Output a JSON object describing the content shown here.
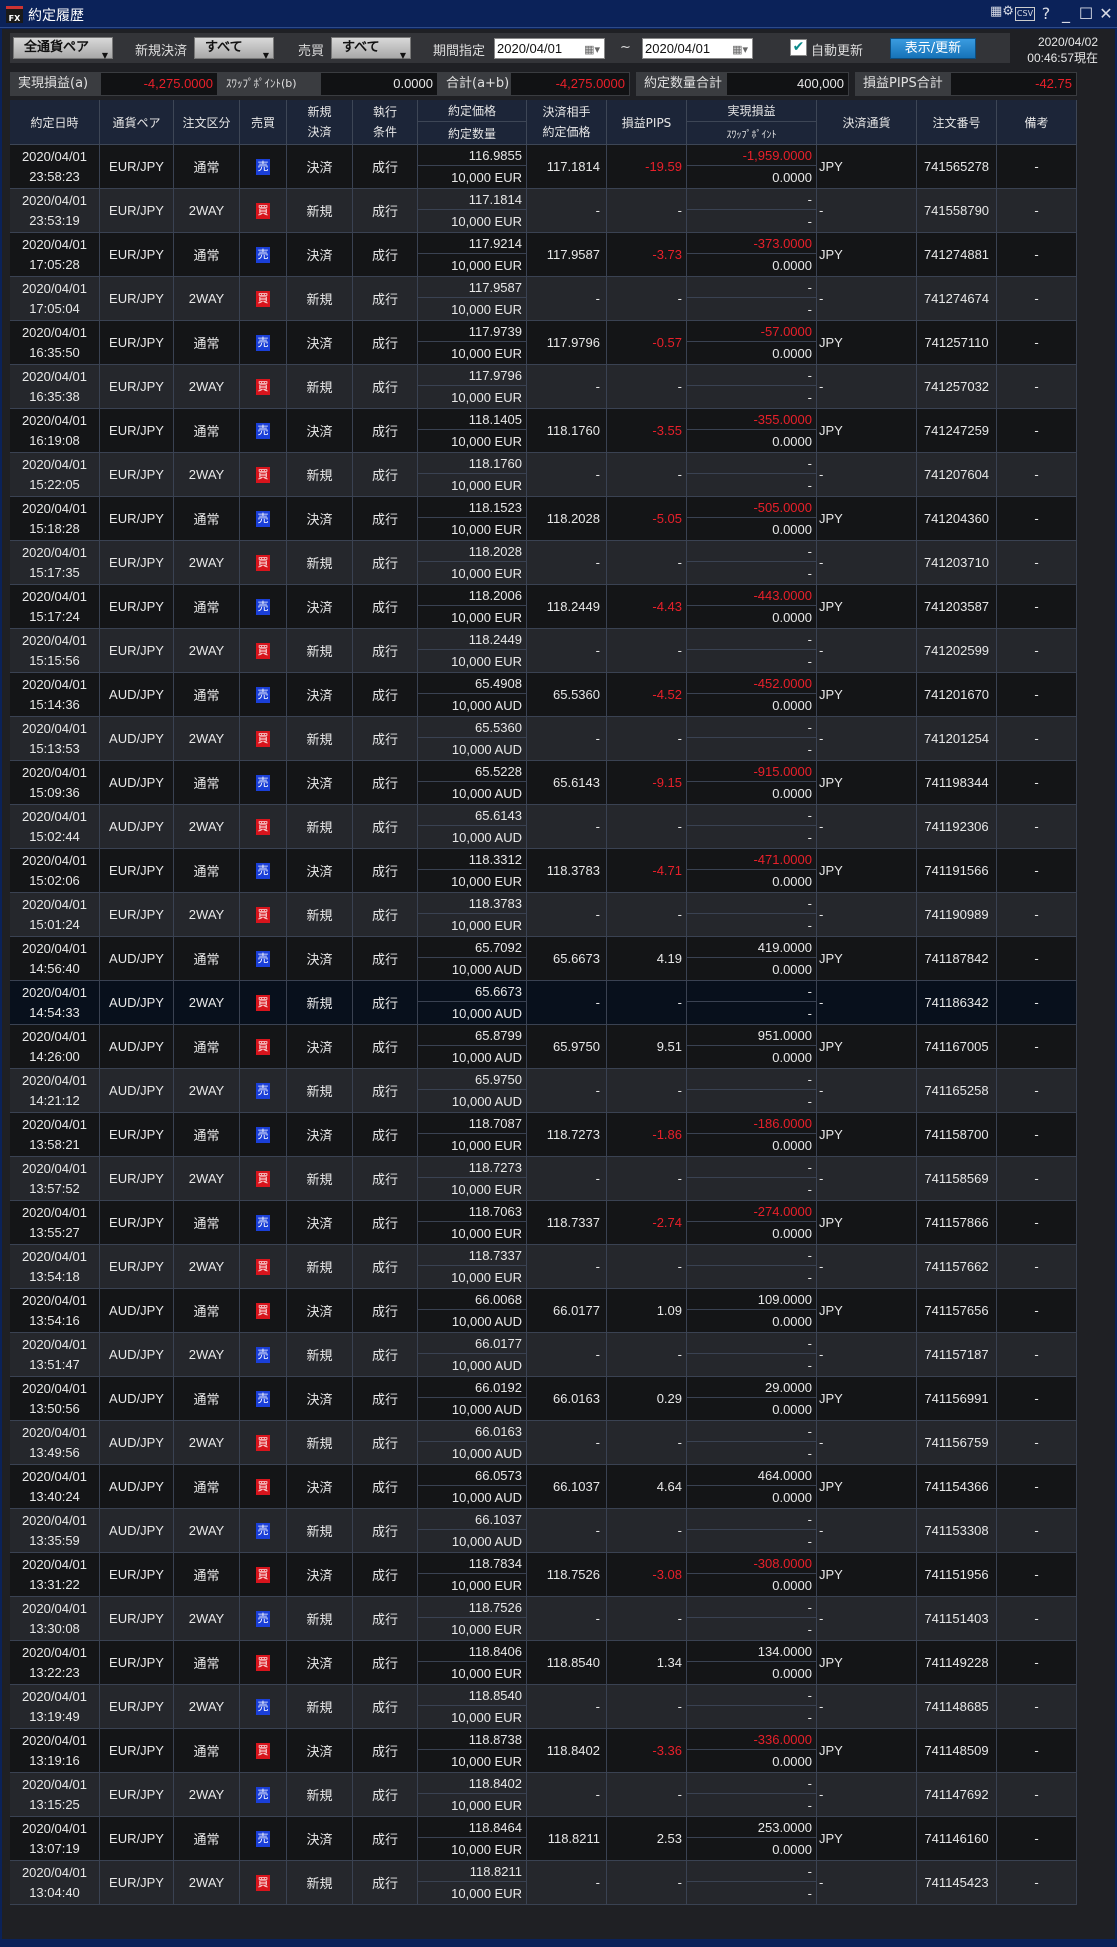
{
  "window": {
    "title": "約定履歴",
    "logo": "FX",
    "icons": [
      "grid-settings-icon",
      "csv-icon",
      "help-icon",
      "minimize-icon",
      "maximize-icon",
      "close-icon"
    ],
    "csv": "CSV",
    "help": "?",
    "min": "_",
    "max": "☐",
    "close": "✕"
  },
  "toolbar": {
    "pair_select": "全通貨ペア",
    "new_close_label": "新規決済",
    "new_close_select": "すべて",
    "side_label": "売買",
    "side_select": "すべて",
    "period_label": "期間指定",
    "date_from": "2020/04/01",
    "tilde": "~",
    "date_to": "2020/04/01",
    "auto_update_label": "自動更新",
    "auto_update_checked": true,
    "refresh_button": "表示/更新",
    "now_date": "2020/04/02",
    "now_time": "00:46:57現在"
  },
  "summary": {
    "pnl_label": "実現損益(a)",
    "pnl_value": "-4,275.0000",
    "swap_label": "ｽﾜｯﾌﾟﾎﾟｲﾝﾄ(b)",
    "swap_value": "0.0000",
    "total_label": "合計(a+b)",
    "total_value": "-4,275.0000",
    "qty_label": "約定数量合計",
    "qty_value": "400,000",
    "pips_label": "損益PIPS合計",
    "pips_value": "-42.75"
  },
  "colors": {
    "sell": "#1a3fd8",
    "buy": "#d8141c",
    "negative": "#e8202a",
    "refresh": "#1f82c8"
  },
  "columns": {
    "datetime": "約定日時",
    "pair": "通貨ペア",
    "order_type": "注文区分",
    "side": "売買",
    "nc1": "新規",
    "nc2": "決済",
    "exec1": "執行",
    "exec2": "条件",
    "price": "約定価格",
    "qty": "約定数量",
    "cp1": "決済相手",
    "cp2": "約定価格",
    "pips": "損益PIPS",
    "pnl": "実現損益",
    "swap": "ｽﾜｯﾌﾟﾎﾟｲﾝﾄ",
    "currency": "決済通貨",
    "order_no": "注文番号",
    "note": "備考"
  },
  "rows": [
    {
      "d": "2020/04/01",
      "t": "23:58:23",
      "pair": "EUR/JPY",
      "type": "通常",
      "side": "売",
      "nc": "決済",
      "ex": "成行",
      "price": "116.9855",
      "qty": "10,000 EUR",
      "cp": "117.1814",
      "pips": "-19.59",
      "pnl": "-1,959.0000",
      "swap": "0.0000",
      "cur": "JPY",
      "no": "741565278",
      "note": "-"
    },
    {
      "d": "2020/04/01",
      "t": "23:53:19",
      "pair": "EUR/JPY",
      "type": "2WAY",
      "side": "買",
      "nc": "新規",
      "ex": "成行",
      "price": "117.1814",
      "qty": "10,000 EUR",
      "cp": "-",
      "pips": "-",
      "pnl": "-",
      "swap": "-",
      "cur": "-",
      "no": "741558790",
      "note": "-"
    },
    {
      "d": "2020/04/01",
      "t": "17:05:28",
      "pair": "EUR/JPY",
      "type": "通常",
      "side": "売",
      "nc": "決済",
      "ex": "成行",
      "price": "117.9214",
      "qty": "10,000 EUR",
      "cp": "117.9587",
      "pips": "-3.73",
      "pnl": "-373.0000",
      "swap": "0.0000",
      "cur": "JPY",
      "no": "741274881",
      "note": "-"
    },
    {
      "d": "2020/04/01",
      "t": "17:05:04",
      "pair": "EUR/JPY",
      "type": "2WAY",
      "side": "買",
      "nc": "新規",
      "ex": "成行",
      "price": "117.9587",
      "qty": "10,000 EUR",
      "cp": "-",
      "pips": "-",
      "pnl": "-",
      "swap": "-",
      "cur": "-",
      "no": "741274674",
      "note": "-"
    },
    {
      "d": "2020/04/01",
      "t": "16:35:50",
      "pair": "EUR/JPY",
      "type": "通常",
      "side": "売",
      "nc": "決済",
      "ex": "成行",
      "price": "117.9739",
      "qty": "10,000 EUR",
      "cp": "117.9796",
      "pips": "-0.57",
      "pnl": "-57.0000",
      "swap": "0.0000",
      "cur": "JPY",
      "no": "741257110",
      "note": "-"
    },
    {
      "d": "2020/04/01",
      "t": "16:35:38",
      "pair": "EUR/JPY",
      "type": "2WAY",
      "side": "買",
      "nc": "新規",
      "ex": "成行",
      "price": "117.9796",
      "qty": "10,000 EUR",
      "cp": "-",
      "pips": "-",
      "pnl": "-",
      "swap": "-",
      "cur": "-",
      "no": "741257032",
      "note": "-"
    },
    {
      "d": "2020/04/01",
      "t": "16:19:08",
      "pair": "EUR/JPY",
      "type": "通常",
      "side": "売",
      "nc": "決済",
      "ex": "成行",
      "price": "118.1405",
      "qty": "10,000 EUR",
      "cp": "118.1760",
      "pips": "-3.55",
      "pnl": "-355.0000",
      "swap": "0.0000",
      "cur": "JPY",
      "no": "741247259",
      "note": "-"
    },
    {
      "d": "2020/04/01",
      "t": "15:22:05",
      "pair": "EUR/JPY",
      "type": "2WAY",
      "side": "買",
      "nc": "新規",
      "ex": "成行",
      "price": "118.1760",
      "qty": "10,000 EUR",
      "cp": "-",
      "pips": "-",
      "pnl": "-",
      "swap": "-",
      "cur": "-",
      "no": "741207604",
      "note": "-"
    },
    {
      "d": "2020/04/01",
      "t": "15:18:28",
      "pair": "EUR/JPY",
      "type": "通常",
      "side": "売",
      "nc": "決済",
      "ex": "成行",
      "price": "118.1523",
      "qty": "10,000 EUR",
      "cp": "118.2028",
      "pips": "-5.05",
      "pnl": "-505.0000",
      "swap": "0.0000",
      "cur": "JPY",
      "no": "741204360",
      "note": "-"
    },
    {
      "d": "2020/04/01",
      "t": "15:17:35",
      "pair": "EUR/JPY",
      "type": "2WAY",
      "side": "買",
      "nc": "新規",
      "ex": "成行",
      "price": "118.2028",
      "qty": "10,000 EUR",
      "cp": "-",
      "pips": "-",
      "pnl": "-",
      "swap": "-",
      "cur": "-",
      "no": "741203710",
      "note": "-"
    },
    {
      "d": "2020/04/01",
      "t": "15:17:24",
      "pair": "EUR/JPY",
      "type": "通常",
      "side": "売",
      "nc": "決済",
      "ex": "成行",
      "price": "118.2006",
      "qty": "10,000 EUR",
      "cp": "118.2449",
      "pips": "-4.43",
      "pnl": "-443.0000",
      "swap": "0.0000",
      "cur": "JPY",
      "no": "741203587",
      "note": "-"
    },
    {
      "d": "2020/04/01",
      "t": "15:15:56",
      "pair": "EUR/JPY",
      "type": "2WAY",
      "side": "買",
      "nc": "新規",
      "ex": "成行",
      "price": "118.2449",
      "qty": "10,000 EUR",
      "cp": "-",
      "pips": "-",
      "pnl": "-",
      "swap": "-",
      "cur": "-",
      "no": "741202599",
      "note": "-"
    },
    {
      "d": "2020/04/01",
      "t": "15:14:36",
      "pair": "AUD/JPY",
      "type": "通常",
      "side": "売",
      "nc": "決済",
      "ex": "成行",
      "price": "65.4908",
      "qty": "10,000 AUD",
      "cp": "65.5360",
      "pips": "-4.52",
      "pnl": "-452.0000",
      "swap": "0.0000",
      "cur": "JPY",
      "no": "741201670",
      "note": "-"
    },
    {
      "d": "2020/04/01",
      "t": "15:13:53",
      "pair": "AUD/JPY",
      "type": "2WAY",
      "side": "買",
      "nc": "新規",
      "ex": "成行",
      "price": "65.5360",
      "qty": "10,000 AUD",
      "cp": "-",
      "pips": "-",
      "pnl": "-",
      "swap": "-",
      "cur": "-",
      "no": "741201254",
      "note": "-"
    },
    {
      "d": "2020/04/01",
      "t": "15:09:36",
      "pair": "AUD/JPY",
      "type": "通常",
      "side": "売",
      "nc": "決済",
      "ex": "成行",
      "price": "65.5228",
      "qty": "10,000 AUD",
      "cp": "65.6143",
      "pips": "-9.15",
      "pnl": "-915.0000",
      "swap": "0.0000",
      "cur": "JPY",
      "no": "741198344",
      "note": "-"
    },
    {
      "d": "2020/04/01",
      "t": "15:02:44",
      "pair": "AUD/JPY",
      "type": "2WAY",
      "side": "買",
      "nc": "新規",
      "ex": "成行",
      "price": "65.6143",
      "qty": "10,000 AUD",
      "cp": "-",
      "pips": "-",
      "pnl": "-",
      "swap": "-",
      "cur": "-",
      "no": "741192306",
      "note": "-"
    },
    {
      "d": "2020/04/01",
      "t": "15:02:06",
      "pair": "EUR/JPY",
      "type": "通常",
      "side": "売",
      "nc": "決済",
      "ex": "成行",
      "price": "118.3312",
      "qty": "10,000 EUR",
      "cp": "118.3783",
      "pips": "-4.71",
      "pnl": "-471.0000",
      "swap": "0.0000",
      "cur": "JPY",
      "no": "741191566",
      "note": "-"
    },
    {
      "d": "2020/04/01",
      "t": "15:01:24",
      "pair": "EUR/JPY",
      "type": "2WAY",
      "side": "買",
      "nc": "新規",
      "ex": "成行",
      "price": "118.3783",
      "qty": "10,000 EUR",
      "cp": "-",
      "pips": "-",
      "pnl": "-",
      "swap": "-",
      "cur": "-",
      "no": "741190989",
      "note": "-"
    },
    {
      "d": "2020/04/01",
      "t": "14:56:40",
      "pair": "AUD/JPY",
      "type": "通常",
      "side": "売",
      "nc": "決済",
      "ex": "成行",
      "price": "65.7092",
      "qty": "10,000 AUD",
      "cp": "65.6673",
      "pips": "4.19",
      "pnl": "419.0000",
      "swap": "0.0000",
      "cur": "JPY",
      "no": "741187842",
      "note": "-"
    },
    {
      "d": "2020/04/01",
      "t": "14:54:33",
      "pair": "AUD/JPY",
      "type": "2WAY",
      "side": "買",
      "nc": "新規",
      "ex": "成行",
      "price": "65.6673",
      "qty": "10,000 AUD",
      "cp": "-",
      "pips": "-",
      "pnl": "-",
      "swap": "-",
      "cur": "-",
      "no": "741186342",
      "note": "-",
      "selected": true
    },
    {
      "d": "2020/04/01",
      "t": "14:26:00",
      "pair": "AUD/JPY",
      "type": "通常",
      "side": "買",
      "nc": "決済",
      "ex": "成行",
      "price": "65.8799",
      "qty": "10,000 AUD",
      "cp": "65.9750",
      "pips": "9.51",
      "pnl": "951.0000",
      "swap": "0.0000",
      "cur": "JPY",
      "no": "741167005",
      "note": "-"
    },
    {
      "d": "2020/04/01",
      "t": "14:21:12",
      "pair": "AUD/JPY",
      "type": "2WAY",
      "side": "売",
      "nc": "新規",
      "ex": "成行",
      "price": "65.9750",
      "qty": "10,000 AUD",
      "cp": "-",
      "pips": "-",
      "pnl": "-",
      "swap": "-",
      "cur": "-",
      "no": "741165258",
      "note": "-"
    },
    {
      "d": "2020/04/01",
      "t": "13:58:21",
      "pair": "EUR/JPY",
      "type": "通常",
      "side": "売",
      "nc": "決済",
      "ex": "成行",
      "price": "118.7087",
      "qty": "10,000 EUR",
      "cp": "118.7273",
      "pips": "-1.86",
      "pnl": "-186.0000",
      "swap": "0.0000",
      "cur": "JPY",
      "no": "741158700",
      "note": "-"
    },
    {
      "d": "2020/04/01",
      "t": "13:57:52",
      "pair": "EUR/JPY",
      "type": "2WAY",
      "side": "買",
      "nc": "新規",
      "ex": "成行",
      "price": "118.7273",
      "qty": "10,000 EUR",
      "cp": "-",
      "pips": "-",
      "pnl": "-",
      "swap": "-",
      "cur": "-",
      "no": "741158569",
      "note": "-"
    },
    {
      "d": "2020/04/01",
      "t": "13:55:27",
      "pair": "EUR/JPY",
      "type": "通常",
      "side": "売",
      "nc": "決済",
      "ex": "成行",
      "price": "118.7063",
      "qty": "10,000 EUR",
      "cp": "118.7337",
      "pips": "-2.74",
      "pnl": "-274.0000",
      "swap": "0.0000",
      "cur": "JPY",
      "no": "741157866",
      "note": "-"
    },
    {
      "d": "2020/04/01",
      "t": "13:54:18",
      "pair": "EUR/JPY",
      "type": "2WAY",
      "side": "買",
      "nc": "新規",
      "ex": "成行",
      "price": "118.7337",
      "qty": "10,000 EUR",
      "cp": "-",
      "pips": "-",
      "pnl": "-",
      "swap": "-",
      "cur": "-",
      "no": "741157662",
      "note": "-"
    },
    {
      "d": "2020/04/01",
      "t": "13:54:16",
      "pair": "AUD/JPY",
      "type": "通常",
      "side": "買",
      "nc": "決済",
      "ex": "成行",
      "price": "66.0068",
      "qty": "10,000 AUD",
      "cp": "66.0177",
      "pips": "1.09",
      "pnl": "109.0000",
      "swap": "0.0000",
      "cur": "JPY",
      "no": "741157656",
      "note": "-"
    },
    {
      "d": "2020/04/01",
      "t": "13:51:47",
      "pair": "AUD/JPY",
      "type": "2WAY",
      "side": "売",
      "nc": "新規",
      "ex": "成行",
      "price": "66.0177",
      "qty": "10,000 AUD",
      "cp": "-",
      "pips": "-",
      "pnl": "-",
      "swap": "-",
      "cur": "-",
      "no": "741157187",
      "note": "-"
    },
    {
      "d": "2020/04/01",
      "t": "13:50:56",
      "pair": "AUD/JPY",
      "type": "通常",
      "side": "売",
      "nc": "決済",
      "ex": "成行",
      "price": "66.0192",
      "qty": "10,000 AUD",
      "cp": "66.0163",
      "pips": "0.29",
      "pnl": "29.0000",
      "swap": "0.0000",
      "cur": "JPY",
      "no": "741156991",
      "note": "-"
    },
    {
      "d": "2020/04/01",
      "t": "13:49:56",
      "pair": "AUD/JPY",
      "type": "2WAY",
      "side": "買",
      "nc": "新規",
      "ex": "成行",
      "price": "66.0163",
      "qty": "10,000 AUD",
      "cp": "-",
      "pips": "-",
      "pnl": "-",
      "swap": "-",
      "cur": "-",
      "no": "741156759",
      "note": "-"
    },
    {
      "d": "2020/04/01",
      "t": "13:40:24",
      "pair": "AUD/JPY",
      "type": "通常",
      "side": "買",
      "nc": "決済",
      "ex": "成行",
      "price": "66.0573",
      "qty": "10,000 AUD",
      "cp": "66.1037",
      "pips": "4.64",
      "pnl": "464.0000",
      "swap": "0.0000",
      "cur": "JPY",
      "no": "741154366",
      "note": "-"
    },
    {
      "d": "2020/04/01",
      "t": "13:35:59",
      "pair": "AUD/JPY",
      "type": "2WAY",
      "side": "売",
      "nc": "新規",
      "ex": "成行",
      "price": "66.1037",
      "qty": "10,000 AUD",
      "cp": "-",
      "pips": "-",
      "pnl": "-",
      "swap": "-",
      "cur": "-",
      "no": "741153308",
      "note": "-"
    },
    {
      "d": "2020/04/01",
      "t": "13:31:22",
      "pair": "EUR/JPY",
      "type": "通常",
      "side": "買",
      "nc": "決済",
      "ex": "成行",
      "price": "118.7834",
      "qty": "10,000 EUR",
      "cp": "118.7526",
      "pips": "-3.08",
      "pnl": "-308.0000",
      "swap": "0.0000",
      "cur": "JPY",
      "no": "741151956",
      "note": "-"
    },
    {
      "d": "2020/04/01",
      "t": "13:30:08",
      "pair": "EUR/JPY",
      "type": "2WAY",
      "side": "売",
      "nc": "新規",
      "ex": "成行",
      "price": "118.7526",
      "qty": "10,000 EUR",
      "cp": "-",
      "pips": "-",
      "pnl": "-",
      "swap": "-",
      "cur": "-",
      "no": "741151403",
      "note": "-"
    },
    {
      "d": "2020/04/01",
      "t": "13:22:23",
      "pair": "EUR/JPY",
      "type": "通常",
      "side": "買",
      "nc": "決済",
      "ex": "成行",
      "price": "118.8406",
      "qty": "10,000 EUR",
      "cp": "118.8540",
      "pips": "1.34",
      "pnl": "134.0000",
      "swap": "0.0000",
      "cur": "JPY",
      "no": "741149228",
      "note": "-"
    },
    {
      "d": "2020/04/01",
      "t": "13:19:49",
      "pair": "EUR/JPY",
      "type": "2WAY",
      "side": "売",
      "nc": "新規",
      "ex": "成行",
      "price": "118.8540",
      "qty": "10,000 EUR",
      "cp": "-",
      "pips": "-",
      "pnl": "-",
      "swap": "-",
      "cur": "-",
      "no": "741148685",
      "note": "-"
    },
    {
      "d": "2020/04/01",
      "t": "13:19:16",
      "pair": "EUR/JPY",
      "type": "通常",
      "side": "買",
      "nc": "決済",
      "ex": "成行",
      "price": "118.8738",
      "qty": "10,000 EUR",
      "cp": "118.8402",
      "pips": "-3.36",
      "pnl": "-336.0000",
      "swap": "0.0000",
      "cur": "JPY",
      "no": "741148509",
      "note": "-"
    },
    {
      "d": "2020/04/01",
      "t": "13:15:25",
      "pair": "EUR/JPY",
      "type": "2WAY",
      "side": "売",
      "nc": "新規",
      "ex": "成行",
      "price": "118.8402",
      "qty": "10,000 EUR",
      "cp": "-",
      "pips": "-",
      "pnl": "-",
      "swap": "-",
      "cur": "-",
      "no": "741147692",
      "note": "-"
    },
    {
      "d": "2020/04/01",
      "t": "13:07:19",
      "pair": "EUR/JPY",
      "type": "通常",
      "side": "売",
      "nc": "決済",
      "ex": "成行",
      "price": "118.8464",
      "qty": "10,000 EUR",
      "cp": "118.8211",
      "pips": "2.53",
      "pnl": "253.0000",
      "swap": "0.0000",
      "cur": "JPY",
      "no": "741146160",
      "note": "-"
    },
    {
      "d": "2020/04/01",
      "t": "13:04:40",
      "pair": "EUR/JPY",
      "type": "2WAY",
      "side": "買",
      "nc": "新規",
      "ex": "成行",
      "price": "118.8211",
      "qty": "10,000 EUR",
      "cp": "-",
      "pips": "-",
      "pnl": "-",
      "swap": "-",
      "cur": "-",
      "no": "741145423",
      "note": "-"
    }
  ]
}
